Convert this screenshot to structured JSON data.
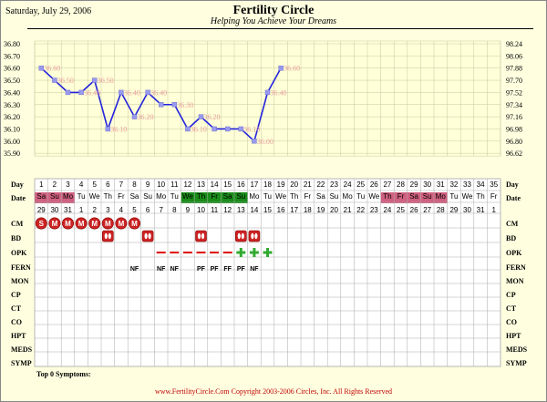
{
  "header": {
    "date": "Saturday, July 29, 2006",
    "title": "Fertility Circle",
    "subtitle": "Helping You Achieve Your Dreams"
  },
  "footer": "www.FertilityCircle.Com Copyright 2003-2006 Circles, Inc. All Rights Reserved",
  "top_symptoms_label": "Top 0 Symptoms:",
  "row_labels": {
    "day": "Day",
    "date": "Date",
    "cm": "CM",
    "bd": "BD",
    "opk": "OPK",
    "fern": "FERN",
    "mon": "MON",
    "cp": "CP",
    "ct": "CT",
    "co": "CO",
    "hpt": "HPT",
    "meds": "MEDS",
    "symp": "SYMP"
  },
  "colors": {
    "line": "#2222dd",
    "marker": "#9999ee",
    "temp_label": "#e8a0a0",
    "period": "#d06080",
    "fertile": "#1a8c1a",
    "cm_badge": "#cc2222",
    "opk_negative": "#dd0000",
    "opk_positive": "#33aa33",
    "grid": "#c8c8a0"
  },
  "chart_data": {
    "type": "line",
    "title": "Fertility Circle",
    "subtitle": "Helping You Achieve Your Dreams",
    "y_celsius_ticks": [
      "36.80",
      "36.70",
      "36.60",
      "36.50",
      "36.40",
      "36.30",
      "36.20",
      "36.10",
      "36.00",
      "35.90"
    ],
    "y_fahrenheit_ticks": [
      "98.24",
      "98.06",
      "97.88",
      "97.70",
      "97.52",
      "97.34",
      "97.16",
      "96.98",
      "96.80",
      "96.62"
    ],
    "ylim": [
      35.85,
      36.85
    ],
    "days": [
      1,
      2,
      3,
      4,
      5,
      6,
      7,
      8,
      9,
      10,
      11,
      12,
      13,
      14,
      15,
      16,
      17,
      18,
      19,
      20,
      21,
      22,
      23,
      24,
      25,
      26,
      27,
      28,
      29,
      30,
      31,
      32,
      33,
      34,
      35
    ],
    "weekdays": [
      "Sa",
      "Su",
      "Mo",
      "Tu",
      "We",
      "Th",
      "Fr",
      "Sa",
      "Su",
      "Mo",
      "Tu",
      "We",
      "Th",
      "Fr",
      "Sa",
      "Su",
      "Mo",
      "Tu",
      "We",
      "Th",
      "Fr",
      "Sa",
      "Su",
      "Mo",
      "Tu",
      "We",
      "Th",
      "Fr",
      "Sa",
      "Su",
      "Mo",
      "Tu",
      "We",
      "Th",
      "Fr"
    ],
    "dates": [
      "29",
      "30",
      "31",
      "1",
      "2",
      "3",
      "4",
      "5",
      "6",
      "7",
      "8",
      "9",
      "10",
      "11",
      "12",
      "13",
      "14",
      "15",
      "16",
      "17",
      "18",
      "19",
      "20",
      "21",
      "22",
      "23",
      "24",
      "25",
      "26",
      "27",
      "28",
      "29",
      "30",
      "31",
      "1"
    ],
    "date_styles": [
      "period",
      "period",
      "period",
      "",
      "",
      "",
      "",
      "",
      "",
      "",
      "",
      "fertile",
      "fertile",
      "fertile",
      "fertile",
      "fertile",
      "",
      "",
      "",
      "",
      "",
      "",
      "",
      "",
      "",
      "",
      "period",
      "period",
      "period",
      "period",
      "period",
      "",
      "",
      "",
      ""
    ],
    "series": [
      {
        "name": "BBT",
        "points": [
          {
            "day": 1,
            "temp": 36.6,
            "label": "36.60"
          },
          {
            "day": 2,
            "temp": 36.5,
            "label": "36.50"
          },
          {
            "day": 3,
            "temp": 36.4,
            "label": ""
          },
          {
            "day": 4,
            "temp": 36.4,
            "label": "36.40"
          },
          {
            "day": 5,
            "temp": 36.5,
            "label": "36.50"
          },
          {
            "day": 6,
            "temp": 36.1,
            "label": "36.10"
          },
          {
            "day": 7,
            "temp": 36.4,
            "label": "36.40"
          },
          {
            "day": 8,
            "temp": 36.2,
            "label": "36.20"
          },
          {
            "day": 9,
            "temp": 36.4,
            "label": "36.40"
          },
          {
            "day": 10,
            "temp": 36.3,
            "label": ""
          },
          {
            "day": 11,
            "temp": 36.3,
            "label": "36.30"
          },
          {
            "day": 12,
            "temp": 36.1,
            "label": "36.10"
          },
          {
            "day": 13,
            "temp": 36.2,
            "label": "36.20"
          },
          {
            "day": 14,
            "temp": 36.1,
            "label": ""
          },
          {
            "day": 15,
            "temp": 36.1,
            "label": ""
          },
          {
            "day": 16,
            "temp": 36.1,
            "label": "36.10"
          },
          {
            "day": 17,
            "temp": 36.0,
            "label": "36.00"
          },
          {
            "day": 18,
            "temp": 36.4,
            "label": "36.40"
          },
          {
            "day": 19,
            "temp": 36.6,
            "label": "36.60"
          }
        ]
      }
    ],
    "cm": [
      {
        "day": 1,
        "mark": "S"
      },
      {
        "day": 2,
        "mark": "M"
      },
      {
        "day": 3,
        "mark": "M"
      },
      {
        "day": 4,
        "mark": "M"
      },
      {
        "day": 5,
        "mark": "M"
      },
      {
        "day": 6,
        "mark": "M"
      },
      {
        "day": 7,
        "mark": "M"
      },
      {
        "day": 8,
        "mark": "M"
      }
    ],
    "bd": [
      6,
      9,
      13,
      16,
      17
    ],
    "opk": {
      "negative_days": [
        10,
        11,
        12,
        13,
        14,
        15
      ],
      "positive_days": [
        16,
        17,
        18
      ]
    },
    "fern": [
      {
        "day": 8,
        "value": "NF"
      },
      {
        "day": 10,
        "value": "NF"
      },
      {
        "day": 11,
        "value": "NF"
      },
      {
        "day": 13,
        "value": "PF"
      },
      {
        "day": 14,
        "value": "PF"
      },
      {
        "day": 15,
        "value": "FF"
      },
      {
        "day": 16,
        "value": "PF"
      },
      {
        "day": 17,
        "value": "NF"
      }
    ]
  }
}
